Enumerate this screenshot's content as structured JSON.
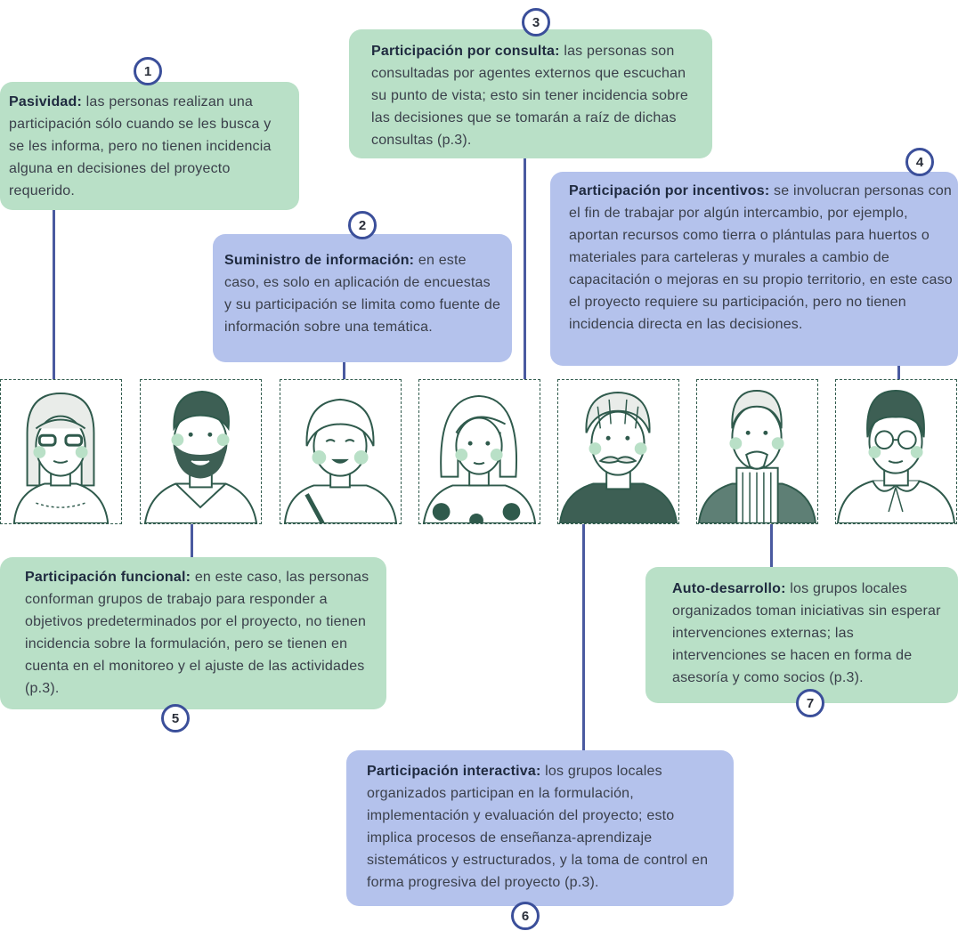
{
  "items": [
    {
      "num": "1",
      "title": "Pasividad:",
      "text": " las personas realizan una participación sólo cuando se les busca y se les informa, pero no tienen incidencia alguna en decisiones del proyecto requerido."
    },
    {
      "num": "2",
      "title": "Suministro de información:",
      "text": " en este caso, es solo en aplicación de encuestas y su participación se limita como fuente de información sobre una temática."
    },
    {
      "num": "3",
      "title": "Participación por consulta:",
      "text": " las personas son consultadas por agentes externos que escuchan su punto de vista; esto sin tener incidencia sobre las decisiones que se tomarán a raíz de dichas consultas (p.3)."
    },
    {
      "num": "4",
      "title": "Participación por incentivos:",
      "text": " se involucran personas con el fin de trabajar por algún intercambio, por ejemplo, aportan recursos como tierra o plántulas para huertos o materiales para carteleras y murales a cambio de capacitación o mejoras en su propio territorio, en este caso el proyecto requiere su participación, pero no tienen incidencia directa en las decisiones."
    },
    {
      "num": "5",
      "title": "Participación funcional:",
      "text": " en este caso, las personas conforman grupos de trabajo para responder a objetivos predeterminados por el proyecto, no tienen incidencia sobre la formulación, pero se tienen en cuenta en el monitoreo y el ajuste de las actividades (p.3)."
    },
    {
      "num": "6",
      "title": "Participación interactiva:",
      "text": " los grupos locales organizados participan en la formulación, implementación y evaluación del proyecto; esto implica procesos de enseñanza-aprendizaje sistemáticos y estructurados, y la toma de control en forma progresiva del proyecto (p.3)."
    },
    {
      "num": "7",
      "title": "Auto-desarrollo:",
      "text": " los grupos locales organizados toman iniciativas sin esperar intervenciones externas; las intervenciones se hacen en forma de asesoría y como socios (p.3)."
    }
  ],
  "colors": {
    "green": "#b9e0c7",
    "blue": "#b4c2ec",
    "line": "#4a5aa0",
    "badge_border": "#3b4f9a",
    "ink": "#2f5a4c"
  }
}
